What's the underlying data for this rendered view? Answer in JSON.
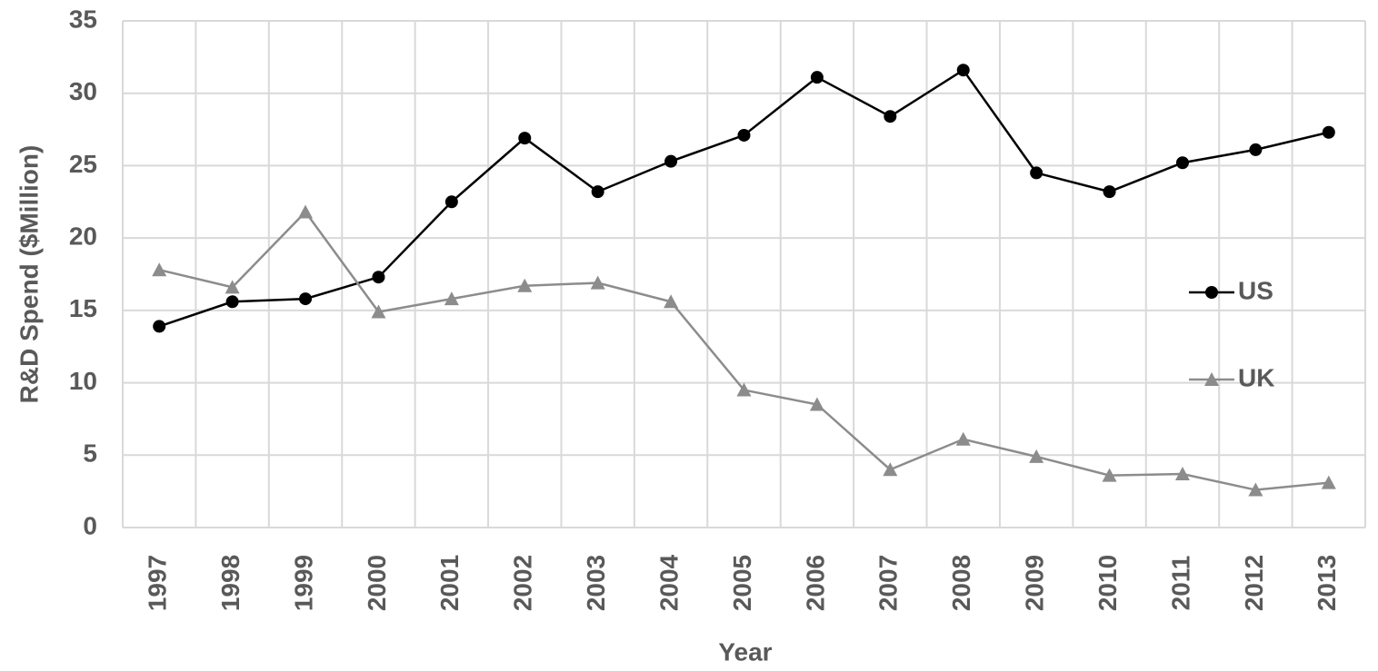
{
  "chart_data": {
    "type": "line",
    "x_label": "Year",
    "y_label": "R&D Spend ($Million)",
    "categories": [
      "1997",
      "1998",
      "1999",
      "2000",
      "2001",
      "2002",
      "2003",
      "2004",
      "2005",
      "2006",
      "2007",
      "2008",
      "2009",
      "2010",
      "2011",
      "2012",
      "2013"
    ],
    "series": [
      {
        "name": "US",
        "color": "#000000",
        "marker": "circle",
        "values": [
          13.9,
          15.6,
          15.8,
          17.3,
          22.5,
          26.9,
          23.2,
          25.3,
          27.1,
          31.1,
          28.4,
          31.6,
          24.5,
          23.2,
          25.2,
          26.1,
          27.3
        ]
      },
      {
        "name": "UK",
        "color": "#8c8c8c",
        "marker": "triangle",
        "values": [
          17.8,
          16.6,
          21.8,
          14.9,
          15.8,
          16.7,
          16.9,
          15.6,
          9.5,
          8.5,
          4.0,
          6.1,
          4.9,
          3.6,
          3.7,
          2.6,
          3.1
        ]
      }
    ],
    "ylim": [
      0,
      35
    ],
    "yticks": [
      0,
      5,
      10,
      15,
      20,
      25,
      30,
      35
    ],
    "grid": true,
    "legend": "right"
  }
}
